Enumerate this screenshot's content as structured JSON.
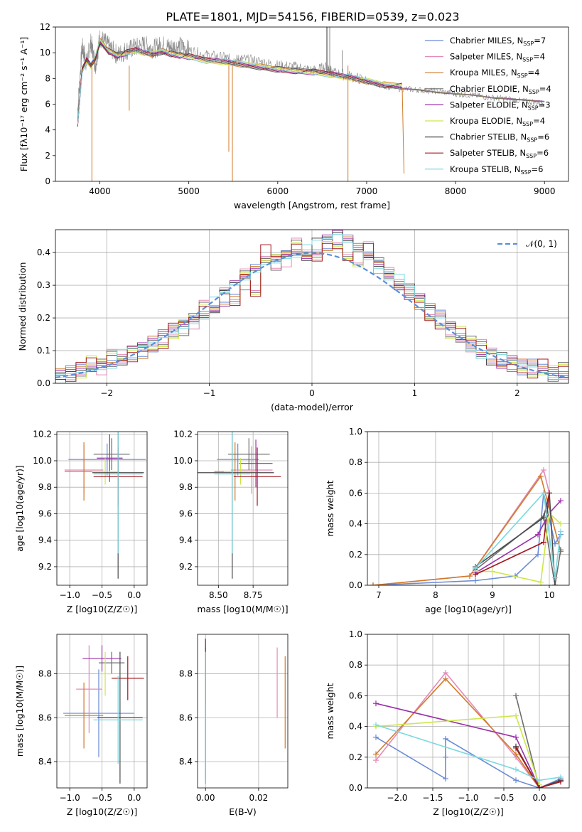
{
  "figure": {
    "title": "PLATE=1801, MJD=54156, FIBERID=0539, z=0.023"
  },
  "chart_data": [
    {
      "id": "spectrum",
      "type": "line",
      "xlabel": "wavelength [Angstrom, rest frame]",
      "ylabel": "Flux [fλ10⁻¹⁷ erg cm⁻² s⁻¹ A⁻¹]",
      "xlim": [
        3500,
        9270
      ],
      "ylim": [
        0,
        12
      ],
      "xticks": [
        4000,
        5000,
        6000,
        7000,
        8000,
        9000
      ],
      "yticks": [
        0,
        2,
        4,
        6,
        8,
        10,
        12
      ],
      "grid": false,
      "legend_position": "upper-right",
      "observed": {
        "name": "",
        "color": "#8a8a8a",
        "x": [
          3750,
          3800,
          3850,
          3900,
          3950,
          4000,
          4100,
          4200,
          4300,
          4400,
          4500,
          4600,
          4700,
          4800,
          4900,
          5000,
          5200,
          5400,
          5500,
          5600,
          5800,
          6000,
          6200,
          6400,
          6560,
          6600,
          6800,
          7000,
          7200,
          7400,
          7600,
          7800,
          8000,
          8200,
          8400,
          8600,
          8800,
          9000
        ],
        "y": [
          5.5,
          10.5,
          9.2,
          10.8,
          9.0,
          11.2,
          10.5,
          9.8,
          10.2,
          10.4,
          10.6,
          10.3,
          10.6,
          10.4,
          10.5,
          10.2,
          9.8,
          9.6,
          9.4,
          9.5,
          9.3,
          9.0,
          8.9,
          8.6,
          8.9,
          8.5,
          8.2,
          7.8,
          7.4,
          7.2,
          7.1,
          7.0,
          6.8,
          6.7,
          6.5,
          6.4,
          6.2,
          6.1
        ]
      },
      "series": [
        {
          "name": "Chabrier MILES, N_SSP=7",
          "color": "#6a8bd6"
        },
        {
          "name": "Salpeter MILES, N_SSP=4",
          "color": "#e58ab8"
        },
        {
          "name": "Kroupa MILES, N_SSP=4",
          "color": "#d07a2a"
        },
        {
          "name": "Chabrier ELODIE, N_SSP=4",
          "color": "#6e6e6e"
        },
        {
          "name": "Salpeter ELODIE, N_SSP=3",
          "color": "#9b30a8"
        },
        {
          "name": "Kroupa ELODIE, N_SSP=4",
          "color": "#cde64a"
        },
        {
          "name": "Chabrier STELIB, N_SSP=6",
          "color": "#4a4a4a"
        },
        {
          "name": "Salpeter STELIB, N_SSP=6",
          "color": "#a3181e"
        },
        {
          "name": "Kroupa STELIB, N_SSP=6",
          "color": "#7ad8e0"
        }
      ],
      "model": {
        "x": [
          3750,
          3800,
          3850,
          3900,
          3950,
          4000,
          4100,
          4200,
          4300,
          4400,
          4500,
          4600,
          4700,
          4800,
          4900,
          5000,
          5200,
          5400,
          5600,
          5800,
          6000,
          6200,
          6400,
          6600,
          6800,
          7000,
          7200,
          7400
        ],
        "y": [
          4.5,
          8.6,
          9.4,
          9.0,
          9.6,
          10.9,
          10.1,
          9.8,
          10.0,
          10.2,
          10.0,
          9.9,
          10.1,
          9.9,
          9.8,
          9.7,
          9.4,
          9.3,
          9.1,
          8.9,
          8.7,
          8.6,
          8.5,
          8.3,
          8.1,
          7.8,
          7.5,
          7.4
        ]
      },
      "long_model": {
        "x": [
          7400,
          7600,
          7800,
          8000,
          8200,
          8400,
          8600,
          8800,
          9000
        ],
        "y": [
          7.3,
          7.2,
          7.0,
          6.9,
          6.8,
          6.6,
          6.5,
          6.4,
          6.3
        ]
      }
    },
    {
      "id": "residuals",
      "type": "histogram",
      "xlabel": "(data-model)/error",
      "ylabel": "Normed distribution",
      "xlim": [
        -2.5,
        2.5
      ],
      "ylim": [
        0,
        0.47
      ],
      "xticks": [
        -2,
        -1,
        0,
        1,
        2
      ],
      "yticks": [
        0.0,
        0.1,
        0.2,
        0.3,
        0.4
      ],
      "grid": true,
      "legend_position": "upper-right",
      "reference": {
        "name": "𝒩(0, 1)",
        "color": "#5a8fd8"
      },
      "bin_edges": [
        -2.5,
        -2.4,
        -2.3,
        -2.2,
        -2.1,
        -2.0,
        -1.9,
        -1.8,
        -1.7,
        -1.6,
        -1.5,
        -1.4,
        -1.3,
        -1.2,
        -1.1,
        -1.0,
        -0.9,
        -0.8,
        -0.7,
        -0.6,
        -0.5,
        -0.4,
        -0.3,
        -0.2,
        -0.1,
        0.0,
        0.1,
        0.2,
        0.3,
        0.4,
        0.5,
        0.6,
        0.7,
        0.8,
        0.9,
        1.0,
        1.1,
        1.2,
        1.3,
        1.4,
        1.5,
        1.6,
        1.7,
        1.8,
        1.9,
        2.0,
        2.1,
        2.2,
        2.3,
        2.4,
        2.5
      ],
      "hist_values": [
        [
          0.02,
          0.03,
          0.04,
          0.05,
          0.06,
          0.07,
          0.08,
          0.09,
          0.1,
          0.12,
          0.14,
          0.16,
          0.18,
          0.2,
          0.22,
          0.24,
          0.26,
          0.29,
          0.31,
          0.34,
          0.37,
          0.38,
          0.4,
          0.41,
          0.4,
          0.42,
          0.43,
          0.45,
          0.43,
          0.41,
          0.39,
          0.37,
          0.34,
          0.31,
          0.28,
          0.25,
          0.22,
          0.2,
          0.17,
          0.14,
          0.12,
          0.1,
          0.08,
          0.07,
          0.06,
          0.05,
          0.05,
          0.04,
          0.03,
          0.03
        ],
        [
          0.03,
          0.03,
          0.04,
          0.06,
          0.05,
          0.08,
          0.07,
          0.1,
          0.11,
          0.12,
          0.13,
          0.16,
          0.17,
          0.19,
          0.23,
          0.22,
          0.28,
          0.25,
          0.35,
          0.29,
          0.4,
          0.37,
          0.38,
          0.42,
          0.39,
          0.38,
          0.44,
          0.43,
          0.4,
          0.38,
          0.41,
          0.36,
          0.33,
          0.3,
          0.28,
          0.26,
          0.21,
          0.19,
          0.16,
          0.15,
          0.12,
          0.11,
          0.09,
          0.06,
          0.07,
          0.05,
          0.04,
          0.05,
          0.03,
          0.04
        ]
      ]
    },
    {
      "id": "age_vs_Z",
      "type": "scatter",
      "xlabel": "Z [log10(Z/Z☉)]",
      "ylabel": "age  [log10(age/yr)]",
      "xlim": [
        -1.2,
        0.2
      ],
      "ylim": [
        9.06,
        10.22
      ],
      "xticks": [
        -1.0,
        -0.5,
        0.0
      ],
      "yticks": [
        9.2,
        9.4,
        9.6,
        9.8,
        10.0,
        10.2
      ],
      "grid": true,
      "points": [
        {
          "x": -0.42,
          "y": 10.01,
          "xerr": 0.6,
          "yerr": 0.12,
          "series": 0
        },
        {
          "x": -0.78,
          "y": 9.93,
          "xerr": 0.3,
          "yerr": 0.18,
          "series": 1
        },
        {
          "x": -0.78,
          "y": 9.92,
          "xerr": 0.3,
          "yerr": 0.22,
          "series": 2
        },
        {
          "x": -0.35,
          "y": 10.05,
          "xerr": 0.28,
          "yerr": 0.12,
          "series": 3
        },
        {
          "x": -0.38,
          "y": 10.02,
          "xerr": 0.2,
          "yerr": 0.18,
          "series": 4
        },
        {
          "x": -0.45,
          "y": 9.92,
          "xerr": 0.2,
          "yerr": 0.1,
          "series": 5
        },
        {
          "x": -0.25,
          "y": 9.91,
          "xerr": 0.4,
          "yerr": 0.8,
          "series": 6
        },
        {
          "x": -0.25,
          "y": 9.88,
          "xerr": 0.38,
          "yerr": 0.22,
          "series": 7
        },
        {
          "x": -0.25,
          "y": 9.9,
          "xerr": 0.38,
          "yerr": 0.6,
          "series": 8
        }
      ]
    },
    {
      "id": "age_vs_mass",
      "type": "scatter",
      "xlabel": "mass [log10(M/M☉)]",
      "ylabel": "",
      "xlim": [
        8.35,
        9.0
      ],
      "ylim": [
        9.06,
        10.22
      ],
      "xticks": [
        8.5,
        8.75
      ],
      "yticks": [
        9.2,
        9.4,
        9.6,
        9.8,
        10.0,
        10.2
      ],
      "grid": true,
      "points": [
        {
          "x": 8.64,
          "y": 10.01,
          "xerr": 0.15,
          "yerr": 0.12,
          "series": 0
        },
        {
          "x": 8.74,
          "y": 9.93,
          "xerr": 0.15,
          "yerr": 0.18,
          "series": 1
        },
        {
          "x": 8.62,
          "y": 9.92,
          "xerr": 0.15,
          "yerr": 0.22,
          "series": 2
        },
        {
          "x": 8.72,
          "y": 10.05,
          "xerr": 0.15,
          "yerr": 0.12,
          "series": 3
        },
        {
          "x": 8.77,
          "y": 9.98,
          "xerr": 0.12,
          "yerr": 0.18,
          "series": 4
        },
        {
          "x": 8.66,
          "y": 9.92,
          "xerr": 0.12,
          "yerr": 0.1,
          "series": 5
        },
        {
          "x": 8.6,
          "y": 9.91,
          "xerr": 0.3,
          "yerr": 0.8,
          "series": 6
        },
        {
          "x": 8.78,
          "y": 9.88,
          "xerr": 0.17,
          "yerr": 0.22,
          "series": 7
        },
        {
          "x": 8.6,
          "y": 9.9,
          "xerr": 0.13,
          "yerr": 0.6,
          "series": 8
        }
      ]
    },
    {
      "id": "mass_weight_vs_age",
      "type": "line",
      "xlabel": "age  [log10(age/yr)]",
      "ylabel": "mass weight",
      "xlim": [
        6.8,
        10.35
      ],
      "ylim": [
        0,
        1.0
      ],
      "xticks": [
        7,
        8,
        9,
        10
      ],
      "yticks": [
        0.0,
        0.2,
        0.4,
        0.6,
        0.8,
        1.0
      ],
      "grid": true,
      "series": [
        {
          "x": [
            6.9,
            8.7,
            9.4,
            9.8,
            9.9,
            10.1,
            10.2
          ],
          "y": [
            0.0,
            0.03,
            0.06,
            0.2,
            0.6,
            0.27,
            0.33
          ],
          "series": 0
        },
        {
          "x": [
            6.9,
            8.6,
            9.9,
            10.0
          ],
          "y": [
            0.0,
            0.06,
            0.75,
            0.6
          ],
          "series": 1
        },
        {
          "x": [
            6.9,
            8.6,
            9.85,
            10.2
          ],
          "y": [
            0.0,
            0.06,
            0.71,
            0.22
          ],
          "series": 2
        },
        {
          "x": [
            8.7,
            9.9,
            10.1,
            10.2
          ],
          "y": [
            0.1,
            0.45,
            0.0,
            0.23
          ],
          "series": 3
        },
        {
          "x": [
            8.7,
            9.8,
            10.0,
            10.2
          ],
          "y": [
            0.08,
            0.33,
            0.47,
            0.55
          ],
          "series": 4
        },
        {
          "x": [
            8.7,
            9.0,
            9.85,
            10.0,
            10.2
          ],
          "y": [
            0.09,
            0.09,
            0.02,
            0.47,
            0.4
          ],
          "series": 5
        },
        {
          "x": [
            8.7,
            9.9,
            10.0,
            10.1
          ],
          "y": [
            0.12,
            0.44,
            0.6,
            0.0
          ],
          "series": 6
        },
        {
          "x": [
            8.7,
            9.9,
            10.0
          ],
          "y": [
            0.07,
            0.28,
            0.6
          ],
          "series": 7
        },
        {
          "x": [
            8.7,
            9.9,
            10.1,
            10.2
          ],
          "y": [
            0.11,
            0.6,
            0.05,
            0.35
          ],
          "series": 8
        }
      ]
    },
    {
      "id": "mass_vs_Z",
      "type": "scatter",
      "xlabel": "Z [log10(Z/Z☉)]",
      "ylabel": "mass [log10(M/M☉)]",
      "xlim": [
        -1.2,
        0.2
      ],
      "ylim": [
        8.28,
        8.98
      ],
      "xticks": [
        -1.0,
        -0.5,
        0.0
      ],
      "yticks": [
        8.4,
        8.6,
        8.8
      ],
      "grid": true,
      "points": [
        {
          "x": -0.55,
          "y": 8.62,
          "xerr": 0.55,
          "yerr": 0.2,
          "series": 0
        },
        {
          "x": -0.7,
          "y": 8.73,
          "xerr": 0.2,
          "yerr": 0.2,
          "series": 1
        },
        {
          "x": -0.78,
          "y": 8.61,
          "xerr": 0.3,
          "yerr": 0.15,
          "series": 2
        },
        {
          "x": -0.35,
          "y": 8.85,
          "xerr": 0.2,
          "yerr": 0.05,
          "series": 3
        },
        {
          "x": -0.5,
          "y": 8.87,
          "xerr": 0.3,
          "yerr": 0.06,
          "series": 4
        },
        {
          "x": -0.45,
          "y": 8.8,
          "xerr": 0.1,
          "yerr": 0.1,
          "series": 5
        },
        {
          "x": -0.22,
          "y": 8.6,
          "xerr": 0.35,
          "yerr": 0.3,
          "series": 6
        },
        {
          "x": -0.1,
          "y": 8.78,
          "xerr": 0.25,
          "yerr": 0.1,
          "series": 7
        },
        {
          "x": -0.25,
          "y": 8.59,
          "xerr": 0.38,
          "yerr": 0.2,
          "series": 8
        }
      ]
    },
    {
      "id": "mass_vs_ebv",
      "type": "scatter",
      "xlabel": "E(B-V)",
      "ylabel": "",
      "xlim": [
        -0.003,
        0.031
      ],
      "ylim": [
        8.28,
        8.98
      ],
      "xticks": [
        0.0,
        0.02
      ],
      "yticks": [
        8.4,
        8.6,
        8.8
      ],
      "grid": true,
      "points": [
        {
          "x": 0.0,
          "y": 8.62,
          "yerr": 0.3,
          "series": 0
        },
        {
          "x": 0.027,
          "y": 8.76,
          "yerr": 0.16,
          "series": 1
        },
        {
          "x": 0.03,
          "y": 8.67,
          "yerr": 0.21,
          "series": 2
        },
        {
          "x": 0.0,
          "y": 8.6,
          "yerr": 0.3,
          "series": 6
        },
        {
          "x": 0.0,
          "y": 8.81,
          "yerr": 0.15,
          "series": 7
        },
        {
          "x": 0.0,
          "y": 8.6,
          "yerr": 0.3,
          "series": 8
        }
      ]
    },
    {
      "id": "mass_weight_vs_Z",
      "type": "line",
      "xlabel": "Z [log10(Z/Z☉)]",
      "ylabel": "mass weight",
      "xlim": [
        -2.42,
        0.42
      ],
      "ylim": [
        0,
        1.0
      ],
      "xticks": [
        -2.0,
        -1.5,
        -1.0,
        -0.5,
        0.0
      ],
      "yticks": [
        0.0,
        0.2,
        0.4,
        0.6,
        0.8,
        1.0
      ],
      "grid": true,
      "series": [
        {
          "x": [
            -2.3,
            -1.32,
            -1.32,
            -1.32,
            -0.33,
            0.0,
            0.3
          ],
          "y": [
            0.33,
            0.06,
            0.2,
            0.32,
            0.05,
            0.0,
            0.06
          ],
          "series": 0
        },
        {
          "x": [
            -2.3,
            -1.32,
            -0.33,
            0.0
          ],
          "y": [
            0.18,
            0.75,
            0.2,
            0.0
          ],
          "series": 1
        },
        {
          "x": [
            -2.3,
            -1.32,
            -0.33,
            0.0
          ],
          "y": [
            0.22,
            0.71,
            0.22,
            0.0
          ],
          "series": 2
        },
        {
          "x": [
            -0.33,
            0.0,
            0.3
          ],
          "y": [
            0.6,
            0.0,
            0.05
          ],
          "series": 3
        },
        {
          "x": [
            -2.3,
            -0.33,
            0.0,
            0.3
          ],
          "y": [
            0.55,
            0.33,
            0.0,
            0.05
          ],
          "series": 4
        },
        {
          "x": [
            -2.3,
            -0.33,
            0.0
          ],
          "y": [
            0.4,
            0.47,
            0.02
          ],
          "series": 5
        },
        {
          "x": [
            -0.33,
            0.0,
            0.3
          ],
          "y": [
            0.27,
            0.0,
            0.05
          ],
          "series": 6
        },
        {
          "x": [
            -0.33,
            0.0,
            0.3
          ],
          "y": [
            0.26,
            0.0,
            0.04
          ],
          "series": 7
        },
        {
          "x": [
            -2.3,
            -0.33,
            0.0,
            0.3
          ],
          "y": [
            0.41,
            0.12,
            0.05,
            0.07
          ],
          "series": 8
        }
      ]
    }
  ]
}
